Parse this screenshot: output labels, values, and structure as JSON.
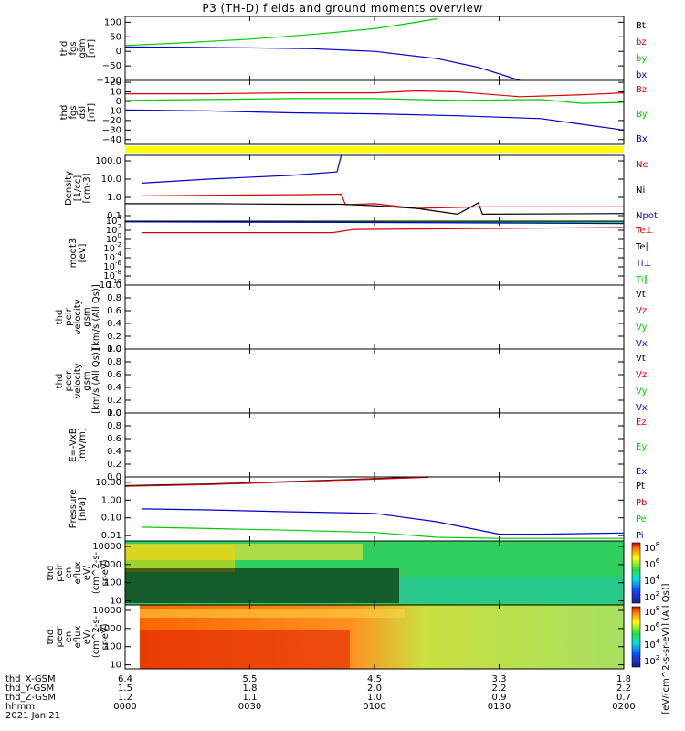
{
  "title": "P3 (TH-D) fields and ground moments overview",
  "colors": {
    "black": "#000000",
    "red": "#dd0000",
    "green": "#00cc00",
    "blue": "#0000cc",
    "yellow": "#ffff00"
  },
  "footer": {
    "rows": [
      {
        "label": "thd_X-GSM",
        "values": [
          "6.4",
          "5.5",
          "4.5",
          "3.3",
          "1.8"
        ]
      },
      {
        "label": "thd_Y-GSM",
        "values": [
          "1.5",
          "1.8",
          "2.0",
          "2.2",
          "2.2"
        ]
      },
      {
        "label": "thd_Z-GSM",
        "values": [
          "1.2",
          "1.1",
          "1.0",
          "0.9",
          "0.7"
        ]
      },
      {
        "label": "hhmm",
        "values": [
          "0000",
          "0030",
          "0100",
          "0130",
          "0200"
        ]
      }
    ],
    "date": "2021 Jan 21"
  },
  "colorbar_unit": "[eV/(cm^2-s-sr-eV)] (All Qs)]",
  "chart_data": [
    {
      "type": "line",
      "name": "fgs_gsm",
      "ylabel": [
        "thd",
        "fgs",
        "gsm",
        "[nT]"
      ],
      "ylim": [
        -100,
        120
      ],
      "yticks": [
        "100",
        "50",
        "0",
        "−50",
        "−100"
      ],
      "legend": [
        {
          "name": "Bt",
          "color": "#000000"
        },
        {
          "name": "bz",
          "color": "#dd0000"
        },
        {
          "name": "by",
          "color": "#00cc00"
        },
        {
          "name": "bx",
          "color": "#0000cc"
        }
      ],
      "series": [
        {
          "name": "by",
          "color": "#00cc00",
          "x": [
            0,
            15,
            30,
            45,
            60,
            70,
            75
          ],
          "y": [
            20,
            30,
            42,
            58,
            78,
            100,
            112
          ]
        },
        {
          "name": "bx",
          "color": "#0000cc",
          "x": [
            0,
            15,
            30,
            45,
            60,
            75,
            85,
            95
          ],
          "y": [
            15,
            14,
            12,
            9,
            0,
            -25,
            -55,
            -100
          ]
        }
      ]
    },
    {
      "type": "line",
      "name": "fgs_dsl",
      "ylabel": [
        "thd",
        "fgs",
        "dsl",
        "[nT]"
      ],
      "ylim": [
        -45,
        22
      ],
      "yticks": [
        "20",
        "10",
        "0",
        "−10",
        "−20",
        "−30",
        "−40"
      ],
      "legend": [
        {
          "name": "Bz",
          "color": "#dd0000"
        },
        {
          "name": "By",
          "color": "#00cc00"
        },
        {
          "name": "Bx",
          "color": "#0000cc"
        }
      ],
      "series": [
        {
          "name": "Bz",
          "color": "#dd0000",
          "x": [
            0,
            20,
            40,
            60,
            70,
            80,
            95,
            110,
            120
          ],
          "y": [
            8,
            8,
            9,
            9,
            11,
            10,
            5,
            7,
            9
          ]
        },
        {
          "name": "By",
          "color": "#00cc00",
          "x": [
            0,
            20,
            40,
            60,
            80,
            100,
            110,
            120
          ],
          "y": [
            1,
            2,
            3,
            3,
            1,
            2,
            -2,
            -1
          ]
        },
        {
          "name": "Bx",
          "color": "#0000cc",
          "x": [
            0,
            20,
            40,
            60,
            80,
            100,
            110,
            120
          ],
          "y": [
            -9,
            -10,
            -12,
            -13,
            -15,
            -18,
            -24,
            -30
          ]
        }
      ]
    },
    {
      "type": "line",
      "name": "density",
      "scale": "log",
      "ylabel": [
        "Density",
        "[1/cc]",
        "[cm-3]"
      ],
      "ylim": [
        0.05,
        200
      ],
      "yticks": [
        "100.0",
        "10.0",
        "1.0",
        "0.1"
      ],
      "legend": [
        {
          "name": "Ne",
          "color": "#dd0000"
        },
        {
          "name": "Ni",
          "color": "#000000"
        },
        {
          "name": "Npot",
          "color": "#0000cc"
        }
      ],
      "series": [
        {
          "name": "Npot",
          "color": "#0000cc",
          "x": [
            4,
            20,
            40,
            51,
            52
          ],
          "y": [
            6,
            10,
            16,
            25,
            200
          ]
        },
        {
          "name": "Ne",
          "color": "#dd0000",
          "x": [
            4,
            20,
            40,
            52,
            53,
            60,
            70,
            85,
            86,
            120
          ],
          "y": [
            1.2,
            1.3,
            1.4,
            1.5,
            0.4,
            0.45,
            0.25,
            0.3,
            0.3,
            0.3
          ]
        },
        {
          "name": "Ni",
          "color": "#000000",
          "x": [
            0,
            20,
            40,
            52,
            60,
            70,
            80,
            85,
            86,
            120
          ],
          "y": [
            0.45,
            0.45,
            0.42,
            0.42,
            0.35,
            0.25,
            0.12,
            0.5,
            0.12,
            0.13
          ]
        }
      ]
    },
    {
      "type": "line",
      "name": "moqt3",
      "scale": "log",
      "ylabel": [
        "moqt3",
        "[eV]"
      ],
      "ylim": [
        1e-10,
        10000.0
      ],
      "yticks": [
        "10^4",
        "10^2",
        "10^0",
        "10^-2",
        "10^-4",
        "10^-6",
        "10^-8",
        "10^-10"
      ],
      "legend": [
        {
          "name": "Te⊥",
          "color": "#dd0000"
        },
        {
          "name": "Te∥",
          "color": "#000000"
        },
        {
          "name": "Ti⊥",
          "color": "#0000cc"
        },
        {
          "name": "Ti∥",
          "color": "#00cc00"
        }
      ],
      "series": [
        {
          "name": "Ti∥",
          "color": "#00cc00",
          "x": [
            0,
            60,
            120
          ],
          "y": [
            8000,
            7000,
            6000
          ]
        },
        {
          "name": "Ti⊥",
          "color": "#0000cc",
          "x": [
            0,
            60,
            120
          ],
          "y": [
            7000,
            5000,
            3000
          ]
        },
        {
          "name": "Te⊥",
          "color": "#dd0000",
          "x": [
            4,
            50,
            55,
            120
          ],
          "y": [
            30,
            30,
            150,
            400
          ]
        }
      ]
    },
    {
      "type": "line",
      "name": "peir_velocity",
      "ylabel": [
        "thd",
        "peir",
        "velocity",
        "gsm",
        "[km/s (All Qs)]"
      ],
      "ylim": [
        0,
        1
      ],
      "yticks": [
        "1.0",
        "0.8",
        "0.6",
        "0.4",
        "0.2",
        "0.0"
      ],
      "legend": [
        {
          "name": "Vt",
          "color": "#000000"
        },
        {
          "name": "Vz",
          "color": "#dd0000"
        },
        {
          "name": "Vy",
          "color": "#00cc00"
        },
        {
          "name": "Vx",
          "color": "#0000cc"
        }
      ],
      "series": []
    },
    {
      "type": "line",
      "name": "peer_velocity",
      "ylabel": [
        "thd",
        "peer",
        "velocity",
        "gsm",
        "[km/s (All Qs)]"
      ],
      "ylim": [
        0,
        1
      ],
      "yticks": [
        "1.0",
        "0.8",
        "0.6",
        "0.4",
        "0.2",
        "0.0"
      ],
      "legend": [
        {
          "name": "Vt",
          "color": "#000000"
        },
        {
          "name": "Vz",
          "color": "#dd0000"
        },
        {
          "name": "Vy",
          "color": "#00cc00"
        },
        {
          "name": "Vx",
          "color": "#0000cc"
        }
      ],
      "series": []
    },
    {
      "type": "line",
      "name": "efield",
      "ylabel": [
        "E=-VxB",
        "[mV/m]"
      ],
      "ylim": [
        0,
        1
      ],
      "yticks": [
        "1.0",
        "0.8",
        "0.6",
        "0.4",
        "0.2",
        "0.0"
      ],
      "legend": [
        {
          "name": "Ez",
          "color": "#dd0000"
        },
        {
          "name": "Ey",
          "color": "#00cc00"
        },
        {
          "name": "Ex",
          "color": "#0000cc"
        }
      ],
      "series": []
    },
    {
      "type": "line",
      "name": "pressure",
      "scale": "log",
      "ylabel": [
        "Pressure",
        "[nPa]"
      ],
      "ylim": [
        0.005,
        20
      ],
      "yticks": [
        "10.00",
        "1.00",
        "0.10",
        "0.01"
      ],
      "legend": [
        {
          "name": "Pt",
          "color": "#000000"
        },
        {
          "name": "Pb",
          "color": "#dd0000"
        },
        {
          "name": "Pe",
          "color": "#00cc00"
        },
        {
          "name": "Pi",
          "color": "#0000cc"
        }
      ],
      "series": [
        {
          "name": "Pt",
          "color": "#000000",
          "x": [
            0,
            20,
            40,
            60,
            73
          ],
          "y": [
            6.5,
            8,
            11,
            16,
            20
          ]
        },
        {
          "name": "Pb",
          "color": "#dd0000",
          "x": [
            0,
            20,
            40,
            60,
            73
          ],
          "y": [
            6.0,
            7.5,
            10.5,
            15,
            19
          ]
        },
        {
          "name": "Pi",
          "color": "#0000cc",
          "x": [
            4,
            20,
            40,
            60,
            75,
            90,
            100,
            120
          ],
          "y": [
            0.32,
            0.28,
            0.22,
            0.18,
            0.06,
            0.012,
            0.012,
            0.014
          ]
        },
        {
          "name": "Pe",
          "color": "#00cc00",
          "x": [
            4,
            20,
            40,
            60,
            75,
            90,
            120
          ],
          "y": [
            0.03,
            0.025,
            0.02,
            0.015,
            0.008,
            0.007,
            0.007
          ]
        }
      ]
    },
    {
      "type": "heatmap",
      "name": "peir_en_eflux",
      "scale": "log",
      "ylabel": [
        "thd",
        "peir",
        "en",
        "eflux",
        "eV/",
        "(cm^2-s-",
        "sr-eV)"
      ],
      "ylim": [
        6,
        20000
      ],
      "yticks": [
        "10000",
        "1000",
        "100",
        "10"
      ],
      "colorbar_ticks": [
        "10^8",
        "10^6",
        "10^4",
        "10^2"
      ]
    },
    {
      "type": "heatmap",
      "name": "peer_en_eflux",
      "scale": "log",
      "ylabel": [
        "thd",
        "peer",
        "en",
        "eflux",
        "eV/",
        "(cm^2-s-",
        "sr-eV)"
      ],
      "ylim": [
        6,
        20000
      ],
      "yticks": [
        "10000",
        "1000",
        "100",
        "10"
      ],
      "colorbar_ticks": [
        "10^8",
        "10^6",
        "10^4",
        "10^2"
      ]
    }
  ]
}
